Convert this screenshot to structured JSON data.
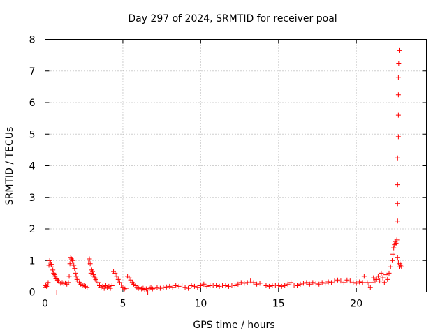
{
  "chart_data": {
    "type": "scatter",
    "title": "Day 297 of 2024, SRMTID for receiver poal",
    "xlabel": "GPS time / hours",
    "ylabel": "SRMTID / TECUs",
    "xlim": [
      0,
      24.5
    ],
    "ylim": [
      0,
      8
    ],
    "xticks": [
      0,
      5,
      10,
      15,
      20
    ],
    "xtick_labels": [
      "0",
      "5",
      "10",
      "15",
      "20"
    ],
    "yticks": [
      0,
      1,
      2,
      3,
      4,
      5,
      6,
      7,
      8
    ],
    "ytick_labels": [
      "0",
      "1",
      "2",
      "3",
      "4",
      "5",
      "6",
      "7",
      "8"
    ],
    "grid": true,
    "marker": "+",
    "color": "#ff0000",
    "series": [
      {
        "name": "SRMTID",
        "points": [
          [
            0.0,
            0.15
          ],
          [
            0.05,
            0.2
          ],
          [
            0.1,
            0.18
          ],
          [
            0.15,
            0.22
          ],
          [
            0.2,
            0.3
          ],
          [
            0.25,
            0.85
          ],
          [
            0.3,
            1.0
          ],
          [
            0.35,
            0.95
          ],
          [
            0.4,
            0.88
          ],
          [
            0.45,
            0.8
          ],
          [
            0.5,
            0.7
          ],
          [
            0.55,
            0.6
          ],
          [
            0.6,
            0.55
          ],
          [
            0.65,
            0.5
          ],
          [
            0.7,
            0.42
          ],
          [
            0.75,
            0.0
          ],
          [
            0.8,
            0.38
          ],
          [
            0.85,
            0.35
          ],
          [
            0.9,
            0.3
          ],
          [
            1.0,
            0.28
          ],
          [
            1.1,
            0.3
          ],
          [
            1.2,
            0.27
          ],
          [
            1.3,
            0.29
          ],
          [
            1.4,
            0.25
          ],
          [
            1.5,
            0.3
          ],
          [
            1.55,
            0.5
          ],
          [
            1.6,
            0.9
          ],
          [
            1.65,
            1.1
          ],
          [
            1.7,
            1.05
          ],
          [
            1.75,
            1.0
          ],
          [
            1.8,
            0.95
          ],
          [
            1.85,
            0.85
          ],
          [
            1.9,
            0.75
          ],
          [
            1.95,
            0.6
          ],
          [
            2.0,
            0.5
          ],
          [
            2.05,
            0.4
          ],
          [
            2.1,
            0.35
          ],
          [
            2.2,
            0.3
          ],
          [
            2.3,
            0.25
          ],
          [
            2.4,
            0.2
          ],
          [
            2.5,
            0.22
          ],
          [
            2.6,
            0.18
          ],
          [
            2.7,
            0.15
          ],
          [
            2.8,
            0.95
          ],
          [
            2.85,
            1.05
          ],
          [
            2.9,
            0.9
          ],
          [
            2.95,
            0.6
          ],
          [
            3.0,
            0.7
          ],
          [
            3.05,
            0.65
          ],
          [
            3.1,
            0.55
          ],
          [
            3.15,
            0.5
          ],
          [
            3.2,
            0.45
          ],
          [
            3.25,
            0.4
          ],
          [
            3.3,
            0.35
          ],
          [
            3.4,
            0.3
          ],
          [
            3.5,
            0.2
          ],
          [
            3.6,
            0.15
          ],
          [
            3.7,
            0.18
          ],
          [
            3.8,
            0.12
          ],
          [
            3.9,
            0.2
          ],
          [
            4.0,
            0.15
          ],
          [
            4.1,
            0.18
          ],
          [
            4.2,
            0.12
          ],
          [
            4.3,
            0.2
          ],
          [
            4.4,
            0.65
          ],
          [
            4.5,
            0.6
          ],
          [
            4.6,
            0.5
          ],
          [
            4.7,
            0.4
          ],
          [
            4.8,
            0.3
          ],
          [
            4.9,
            0.22
          ],
          [
            5.0,
            0.15
          ],
          [
            5.1,
            0.1
          ],
          [
            5.2,
            0.12
          ],
          [
            5.3,
            0.5
          ],
          [
            5.4,
            0.45
          ],
          [
            5.5,
            0.38
          ],
          [
            5.6,
            0.3
          ],
          [
            5.7,
            0.25
          ],
          [
            5.8,
            0.2
          ],
          [
            5.9,
            0.15
          ],
          [
            6.0,
            0.12
          ],
          [
            6.1,
            0.15
          ],
          [
            6.2,
            0.1
          ],
          [
            6.3,
            0.12
          ],
          [
            6.4,
            0.08
          ],
          [
            6.5,
            0.1
          ],
          [
            6.6,
            0.0
          ],
          [
            6.7,
            0.12
          ],
          [
            6.8,
            0.15
          ],
          [
            6.9,
            0.1
          ],
          [
            7.0,
            0.12
          ],
          [
            7.2,
            0.15
          ],
          [
            7.4,
            0.12
          ],
          [
            7.6,
            0.14
          ],
          [
            7.8,
            0.16
          ],
          [
            8.0,
            0.18
          ],
          [
            8.2,
            0.15
          ],
          [
            8.4,
            0.2
          ],
          [
            8.6,
            0.18
          ],
          [
            8.8,
            0.22
          ],
          [
            9.0,
            0.15
          ],
          [
            9.2,
            0.12
          ],
          [
            9.4,
            0.2
          ],
          [
            9.6,
            0.18
          ],
          [
            9.8,
            0.15
          ],
          [
            10.0,
            0.2
          ],
          [
            10.2,
            0.25
          ],
          [
            10.4,
            0.18
          ],
          [
            10.6,
            0.2
          ],
          [
            10.8,
            0.22
          ],
          [
            11.0,
            0.2
          ],
          [
            11.2,
            0.18
          ],
          [
            11.4,
            0.22
          ],
          [
            11.6,
            0.2
          ],
          [
            11.8,
            0.18
          ],
          [
            12.0,
            0.22
          ],
          [
            12.2,
            0.2
          ],
          [
            12.4,
            0.25
          ],
          [
            12.6,
            0.3
          ],
          [
            12.8,
            0.28
          ],
          [
            13.0,
            0.3
          ],
          [
            13.2,
            0.35
          ],
          [
            13.4,
            0.3
          ],
          [
            13.6,
            0.25
          ],
          [
            13.8,
            0.28
          ],
          [
            14.0,
            0.22
          ],
          [
            14.2,
            0.2
          ],
          [
            14.4,
            0.18
          ],
          [
            14.6,
            0.2
          ],
          [
            14.8,
            0.22
          ],
          [
            15.0,
            0.2
          ],
          [
            15.2,
            0.18
          ],
          [
            15.4,
            0.2
          ],
          [
            15.6,
            0.25
          ],
          [
            15.8,
            0.3
          ],
          [
            16.0,
            0.22
          ],
          [
            16.2,
            0.2
          ],
          [
            16.4,
            0.25
          ],
          [
            16.6,
            0.28
          ],
          [
            16.8,
            0.3
          ],
          [
            17.0,
            0.25
          ],
          [
            17.2,
            0.3
          ],
          [
            17.4,
            0.28
          ],
          [
            17.6,
            0.25
          ],
          [
            17.8,
            0.3
          ],
          [
            18.0,
            0.28
          ],
          [
            18.2,
            0.32
          ],
          [
            18.4,
            0.3
          ],
          [
            18.6,
            0.35
          ],
          [
            18.8,
            0.38
          ],
          [
            19.0,
            0.35
          ],
          [
            19.2,
            0.3
          ],
          [
            19.4,
            0.38
          ],
          [
            19.6,
            0.35
          ],
          [
            19.8,
            0.3
          ],
          [
            20.0,
            0.28
          ],
          [
            20.2,
            0.32
          ],
          [
            20.4,
            0.3
          ],
          [
            20.5,
            0.5
          ],
          [
            20.7,
            0.3
          ],
          [
            20.8,
            0.22
          ],
          [
            20.9,
            0.15
          ],
          [
            21.0,
            0.3
          ],
          [
            21.1,
            0.45
          ],
          [
            21.2,
            0.35
          ],
          [
            21.3,
            0.4
          ],
          [
            21.4,
            0.5
          ],
          [
            21.5,
            0.35
          ],
          [
            21.6,
            0.6
          ],
          [
            21.7,
            0.45
          ],
          [
            21.8,
            0.3
          ],
          [
            21.9,
            0.55
          ],
          [
            22.0,
            0.4
          ],
          [
            22.1,
            0.6
          ],
          [
            22.2,
            0.8
          ],
          [
            22.3,
            1.0
          ],
          [
            22.35,
            1.2
          ],
          [
            22.4,
            1.4
          ],
          [
            22.45,
            1.5
          ],
          [
            22.5,
            1.6
          ],
          [
            22.55,
            1.55
          ],
          [
            22.6,
            1.65
          ],
          [
            22.65,
            1.1
          ],
          [
            22.7,
            0.95
          ],
          [
            22.75,
            0.8
          ],
          [
            22.8,
            0.9
          ],
          [
            22.85,
            0.85
          ],
          [
            22.9,
            0.8
          ],
          [
            22.65,
            2.25
          ],
          [
            22.65,
            2.8
          ],
          [
            22.65,
            3.4
          ],
          [
            22.65,
            4.25
          ],
          [
            22.7,
            4.92
          ],
          [
            22.7,
            5.6
          ],
          [
            22.7,
            6.25
          ],
          [
            22.7,
            6.8
          ],
          [
            22.72,
            7.25
          ],
          [
            22.75,
            7.65
          ]
        ]
      }
    ]
  }
}
